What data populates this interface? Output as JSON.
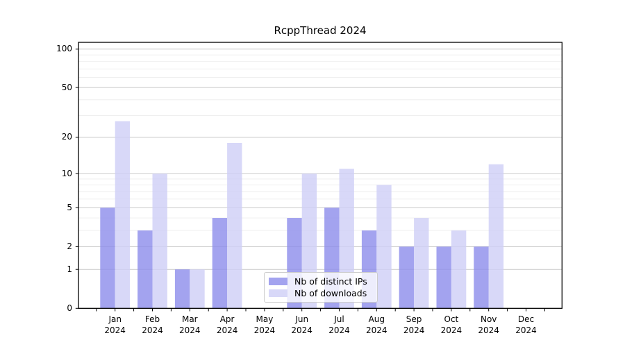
{
  "figure": {
    "title": "RcppThread 2024"
  },
  "chart_data": {
    "type": "bar",
    "title": "RcppThread 2024",
    "categories": [
      "Jan",
      "Feb",
      "Mar",
      "Apr",
      "May",
      "Jun",
      "Jul",
      "Aug",
      "Sep",
      "Oct",
      "Nov",
      "Dec"
    ],
    "x_sublabel": "2024",
    "series": [
      {
        "name": "Nb of distinct IPs",
        "color": "#8f8fec",
        "values": [
          5,
          3,
          1,
          4,
          0,
          4,
          5,
          3,
          2,
          2,
          2,
          0
        ]
      },
      {
        "name": "Nb of downloads",
        "color": "#d0d0f7",
        "values": [
          27,
          10,
          1,
          18,
          0,
          10,
          11,
          8,
          4,
          3,
          12,
          0
        ]
      }
    ],
    "scale": "log1p",
    "ylim": [
      0,
      113
    ],
    "y_ticks_major": [
      0,
      1,
      2,
      5,
      10,
      20,
      50,
      100
    ],
    "y_minor_gridlines": [
      3,
      4,
      6,
      7,
      8,
      9,
      30,
      40,
      60,
      70,
      80,
      90
    ],
    "grid": true,
    "xlabel": "",
    "ylabel": "",
    "legend_position": "lower center inside"
  },
  "colors": {
    "major_grid": "#c9c9c9",
    "minor_grid": "#ededed",
    "axis_frame": "#000000",
    "text": "#000000"
  }
}
